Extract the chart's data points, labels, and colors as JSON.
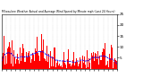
{
  "title": "Milwaukee Weather Actual and Average Wind Speed by Minute mph (Last 24 Hours)",
  "n_points": 1440,
  "ylim": [
    0,
    25
  ],
  "yticks": [
    5,
    10,
    15,
    20,
    25
  ],
  "bar_color": "#FF0000",
  "line_color": "#0000FF",
  "background_color": "#FFFFFF",
  "grid_color": "#BBBBBB",
  "seed": 99,
  "actual_base_mean": 7,
  "actual_base_std": 4,
  "avg_window": 90,
  "n_xticks": 25
}
